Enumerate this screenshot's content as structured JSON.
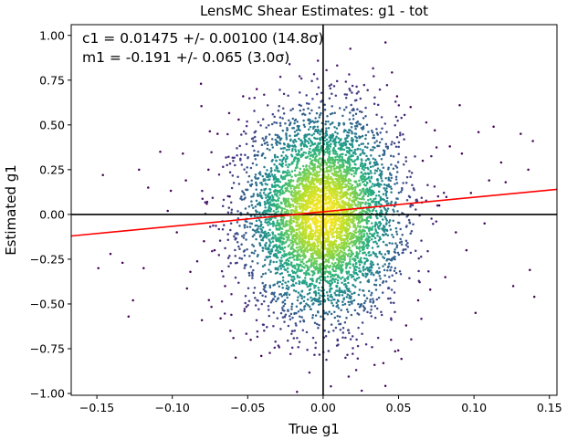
{
  "chart_data": {
    "type": "scatter",
    "title": "LensMC Shear Estimates: g1  - tot",
    "xlabel": "True g1",
    "ylabel": "Estimated g1",
    "xlim": [
      -0.167,
      0.155
    ],
    "ylim": [
      -1.01,
      1.06
    ],
    "xticks": [
      -0.15,
      -0.1,
      -0.05,
      0.0,
      0.05,
      0.1,
      0.15
    ],
    "xtick_labels": [
      "−0.15",
      "−0.10",
      "−0.05",
      "0.00",
      "0.05",
      "0.10",
      "0.15"
    ],
    "yticks": [
      -1.0,
      -0.75,
      -0.5,
      -0.25,
      0.0,
      0.25,
      0.5,
      0.75,
      1.0
    ],
    "ytick_labels": [
      "−1.00",
      "−0.75",
      "−0.50",
      "−0.25",
      "0.00",
      "0.25",
      "0.50",
      "0.75",
      "1.00"
    ],
    "annotations": [
      "c1 = 0.01475 +/- 0.00100 (14.8σ)",
      "m1 = -0.191 +/- 0.065 (3.0σ)"
    ],
    "fit_line": {
      "c": 0.01475,
      "m": -0.191,
      "color": "#ff0000"
    },
    "reference_lines": {
      "x": 0.0,
      "y": 0.0,
      "color": "#000000"
    },
    "point_cloud": {
      "center": [
        0.0,
        0.0
      ],
      "sd_x": 0.025,
      "sd_y": 0.28,
      "colormap": "viridis"
    },
    "outliers": [
      [
        -0.146,
        0.22
      ],
      [
        -0.149,
        -0.3
      ],
      [
        -0.141,
        -0.22
      ],
      [
        -0.133,
        -0.27
      ],
      [
        -0.126,
        -0.48
      ],
      [
        -0.129,
        -0.57
      ],
      [
        -0.122,
        0.25
      ],
      [
        -0.116,
        0.15
      ],
      [
        -0.119,
        -0.3
      ],
      [
        -0.108,
        0.35
      ],
      [
        -0.103,
        0.02
      ],
      [
        -0.097,
        -0.1
      ],
      [
        -0.093,
        0.34
      ],
      [
        -0.091,
        0.19
      ],
      [
        -0.088,
        -0.32
      ],
      [
        -0.081,
        0.73
      ],
      [
        -0.079,
        -0.15
      ],
      [
        -0.076,
        0.25
      ],
      [
        -0.072,
        -0.2
      ],
      [
        -0.07,
        0.45
      ],
      [
        -0.068,
        -0.58
      ],
      [
        -0.065,
        -0.4
      ],
      [
        -0.062,
        0.1
      ],
      [
        -0.058,
        -0.8
      ],
      [
        -0.056,
        0.53
      ],
      [
        -0.053,
        0.66
      ],
      [
        -0.048,
        -0.7
      ],
      [
        -0.044,
        0.7
      ],
      [
        -0.041,
        -0.79
      ],
      [
        0.045,
        -0.7
      ],
      [
        0.049,
        0.66
      ],
      [
        0.055,
        -0.62
      ],
      [
        0.058,
        0.6
      ],
      [
        0.063,
        -0.48
      ],
      [
        0.066,
        0.3
      ],
      [
        0.071,
        -0.42
      ],
      [
        0.074,
        0.47
      ],
      [
        0.077,
        0.05
      ],
      [
        0.081,
        -0.35
      ],
      [
        0.084,
        0.38
      ],
      [
        0.088,
        -0.1
      ],
      [
        0.092,
        0.34
      ],
      [
        0.095,
        -0.2
      ],
      [
        0.098,
        0.12
      ],
      [
        0.101,
        -0.55
      ],
      [
        0.103,
        0.46
      ],
      [
        0.107,
        -0.05
      ],
      [
        0.11,
        0.19
      ],
      [
        0.113,
        0.49
      ],
      [
        0.118,
        0.29
      ],
      [
        0.121,
        0.18
      ],
      [
        0.126,
        -0.4
      ],
      [
        0.131,
        0.45
      ],
      [
        0.136,
        0.25
      ],
      [
        0.137,
        -0.31
      ],
      [
        0.139,
        0.41
      ],
      [
        0.14,
        -0.46
      ]
    ]
  }
}
